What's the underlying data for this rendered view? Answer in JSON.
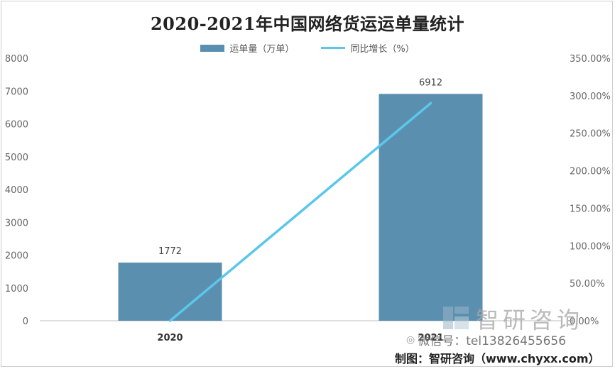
{
  "chart_data": {
    "type": "bar",
    "title": "2020-2021年中国网络货运运单量统计",
    "categories": [
      "2020",
      "2021"
    ],
    "series": [
      {
        "name": "运单量（万单）",
        "type": "bar",
        "axis": "left",
        "color": "#5b8fb0",
        "values": [
          1772,
          6912
        ],
        "data_labels": [
          "1772",
          "6912"
        ]
      },
      {
        "name": "同比增长（%）",
        "type": "line",
        "axis": "right",
        "color": "#5bc7ea",
        "values": [
          0,
          290
        ]
      }
    ],
    "y_left": {
      "min": 0,
      "max": 8000,
      "ticks": [
        "0",
        "1000",
        "2000",
        "3000",
        "4000",
        "5000",
        "6000",
        "7000",
        "8000"
      ]
    },
    "y_right": {
      "min": 0,
      "max": 350,
      "ticks": [
        "0.00%",
        "50.00%",
        "100.00%",
        "150.00%",
        "200.00%",
        "250.00%",
        "300.00%",
        "350.00%"
      ]
    },
    "grid": false,
    "legend_position": "top"
  },
  "watermark": {
    "brand": "智研咨询",
    "wechat": "微信号：tel13826455656"
  },
  "credit": "制图：智研咨询（www.chyxx.com）"
}
